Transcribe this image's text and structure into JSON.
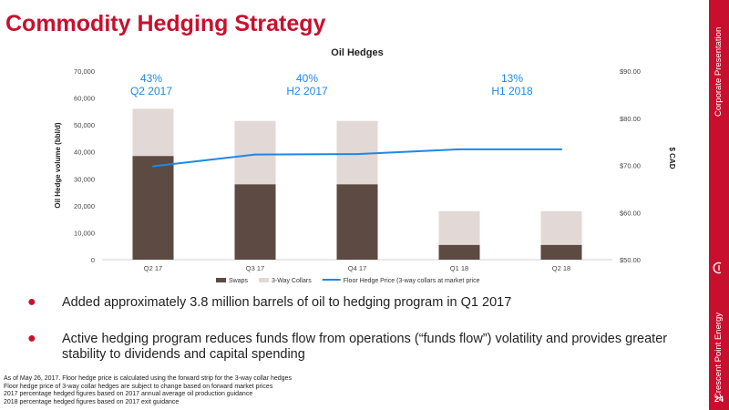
{
  "slide": {
    "title": "Commodity Hedging Strategy",
    "page_number": "24",
    "sidebar_top": "Corporate Presentation",
    "sidebar_bottom": "Crescent Point Energy"
  },
  "chart_data": {
    "type": "bar",
    "title": "Oil Hedges",
    "ylabel": "Oil Hedge volume (bbl/d)",
    "y2label": "$ CAD",
    "categories": [
      "Q2 17",
      "Q3 17",
      "Q4 17",
      "Q1 18",
      "Q2 18"
    ],
    "ylim": [
      0,
      70000
    ],
    "y_ticks": [
      "0",
      "10,000",
      "20,000",
      "30,000",
      "40,000",
      "50,000",
      "60,000",
      "70,000"
    ],
    "y2lim": [
      50,
      90
    ],
    "y2_ticks": [
      "$50.00",
      "$60.00",
      "$70.00",
      "$80.00",
      "$90.00"
    ],
    "stacked": true,
    "series": [
      {
        "name": "Swaps",
        "kind": "bar",
        "color": "#5d4a42",
        "values": [
          38500,
          28000,
          28000,
          5500,
          5500
        ]
      },
      {
        "name": "3-Way Collars",
        "kind": "bar",
        "color": "#e2d8d6",
        "values": [
          17500,
          23500,
          23500,
          12500,
          12500
        ]
      },
      {
        "name": "Floor Hedge Price (3-way collars at market price",
        "kind": "line",
        "axis": "right",
        "color": "#1e88e5",
        "values": [
          69.8,
          72.3,
          72.4,
          73.4,
          73.4
        ]
      }
    ],
    "annotations": [
      {
        "percent": "43%",
        "period": "Q2 2017",
        "category": "Q2 17"
      },
      {
        "percent": "40%",
        "period": "H2 2017",
        "category": "Q4 17"
      },
      {
        "percent": "13%",
        "period": "H1 2018",
        "category": "Q1 18"
      }
    ],
    "legend_position": "bottom"
  },
  "bullets": [
    "Added approximately 3.8 million barrels of oil to hedging program in Q1 2017",
    "Active hedging program reduces funds flow from operations (“funds flow”) volatility and provides greater stability to dividends and capital spending"
  ],
  "footnotes": [
    "As of May 26, 2017. Floor hedge price is calculated using the forward strip for the 3-way collar hedges",
    "Floor hedge price of 3-way collar hedges are subject to change based on forward market prices",
    "2017 percentage hedged figures based on 2017 annual average oil production guidance",
    "2018 percentage hedged figures based on 2017 exit guidance"
  ]
}
